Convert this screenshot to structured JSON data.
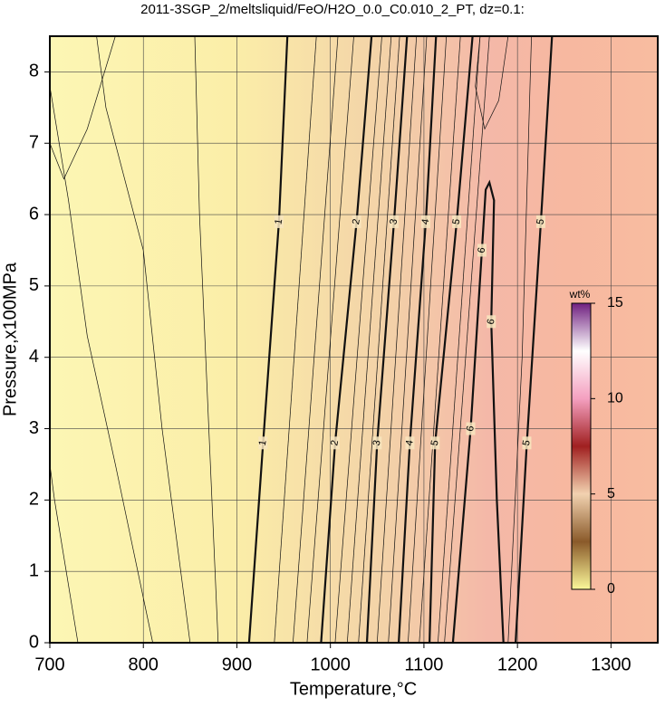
{
  "chart_data": {
    "type": "contour",
    "title": "2011-3SGP_2/meltsliquid/FeO/H2O_0.0_C0.010_2_PT, dz=0.1:",
    "x_label": "Temperature,°C",
    "y_label": "Pressure,x100MPa",
    "xlim": [
      700,
      1350
    ],
    "ylim": [
      0,
      8.5
    ],
    "xticks": [
      700,
      800,
      900,
      1000,
      1100,
      1200,
      1300
    ],
    "yticks": [
      0,
      1,
      2,
      3,
      4,
      5,
      6,
      7,
      8
    ],
    "grid": true,
    "colorbar": {
      "label": "wt%",
      "lim": [
        0,
        15
      ],
      "ticks": [
        0,
        5,
        10,
        15
      ],
      "colormap": [
        "#fbf89a",
        "#8a5a2a",
        "#f2d2b0",
        "#a02020",
        "#f4a0c0",
        "#ffffff",
        "#702080"
      ]
    },
    "contours": [
      {
        "level": 1,
        "x": [
          913,
          928,
          945,
          954
        ],
        "y": [
          0,
          2.8,
          5.9,
          8.5
        ]
      },
      {
        "level": 2,
        "x": [
          990,
          1005,
          1028,
          1044
        ],
        "y": [
          0,
          2.8,
          5.9,
          8.5
        ]
      },
      {
        "level": 3,
        "x": [
          1039,
          1050,
          1068,
          1082
        ],
        "y": [
          0,
          2.8,
          5.9,
          8.5
        ]
      },
      {
        "level": 4,
        "x": [
          1073,
          1085,
          1102,
          1113
        ],
        "y": [
          0,
          2.8,
          5.9,
          8.5
        ]
      },
      {
        "level": 5,
        "x": [
          1106,
          1112,
          1135,
          1152
        ],
        "y": [
          0,
          2.8,
          5.9,
          8.5
        ]
      },
      {
        "level": 6,
        "x": [
          1131,
          1150,
          1162,
          1166,
          1170,
          1175,
          1172,
          1178,
          1185
        ],
        "y": [
          0,
          3,
          5.5,
          6.35,
          6.45,
          6.2,
          4.5,
          2,
          0
        ]
      },
      {
        "level": 5,
        "x": [
          1198,
          1210,
          1225,
          1237
        ],
        "y": [
          0,
          2.8,
          5.9,
          8.5
        ]
      }
    ],
    "minor_contours": [
      {
        "level": 0.7,
        "x": [
          730,
          705,
          700
        ],
        "y": [
          0,
          2,
          2.5
        ]
      },
      {
        "level": 0.75,
        "x": [
          700,
          715,
          740,
          770
        ],
        "y": [
          7,
          6.5,
          7.2,
          8.5
        ]
      },
      {
        "level": 0.8,
        "x": [
          810,
          770,
          740,
          720,
          700
        ],
        "y": [
          0,
          2.5,
          4.3,
          6.2,
          7.8
        ]
      },
      {
        "level": 0.85,
        "x": [
          850,
          820,
          800,
          760,
          750
        ],
        "y": [
          0,
          3,
          5.5,
          7.5,
          8.5
        ]
      },
      {
        "level": 0.9,
        "x": [
          880,
          870,
          860,
          855
        ],
        "y": [
          0,
          3,
          6,
          8.5
        ]
      },
      {
        "level": 1.25,
        "x": [
          940,
          985
        ],
        "y": [
          0,
          8.5
        ]
      },
      {
        "level": 1.5,
        "x": [
          960,
          1008
        ],
        "y": [
          0,
          8.5
        ]
      },
      {
        "level": 1.75,
        "x": [
          975,
          1025
        ],
        "y": [
          0,
          8.5
        ]
      },
      {
        "level": 2.25,
        "x": [
          1005,
          1055
        ],
        "y": [
          0,
          8.5
        ]
      },
      {
        "level": 2.5,
        "x": [
          1018,
          1065
        ],
        "y": [
          0,
          8.5
        ]
      },
      {
        "level": 2.75,
        "x": [
          1030,
          1074
        ],
        "y": [
          0,
          8.5
        ]
      },
      {
        "level": 3.33,
        "x": [
          1050,
          1092
        ],
        "y": [
          0,
          8.5
        ]
      },
      {
        "level": 3.67,
        "x": [
          1062,
          1103
        ],
        "y": [
          0,
          8.5
        ]
      },
      {
        "level": 4.33,
        "x": [
          1083,
          1124
        ],
        "y": [
          0,
          8.5
        ]
      },
      {
        "level": 4.67,
        "x": [
          1095,
          1139
        ],
        "y": [
          0,
          8.5
        ]
      },
      {
        "level": 5.33,
        "x": [
          1115,
          1160
        ],
        "y": [
          0,
          8.5
        ]
      },
      {
        "level": 5.67,
        "x": [
          1122,
          1170
        ],
        "y": [
          0,
          8.5
        ]
      },
      {
        "level": 5.8,
        "x": [
          1190,
          1205,
          1215
        ],
        "y": [
          0,
          4,
          8.5
        ]
      },
      {
        "level": 5.5,
        "x": [
          1160,
          1155,
          1165,
          1180,
          1190
        ],
        "y": [
          8.5,
          7.8,
          7.2,
          7.6,
          8.5
        ]
      }
    ]
  }
}
